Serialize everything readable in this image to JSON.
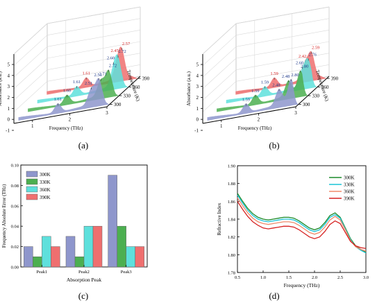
{
  "figure": {
    "panels": [
      {
        "id": "a",
        "label": "(a)"
      },
      {
        "id": "b",
        "label": "(b)"
      },
      {
        "id": "c",
        "label": "(c)"
      },
      {
        "id": "d",
        "label": "(d)"
      }
    ]
  },
  "colors": {
    "300K": "#8e96cc",
    "330K": "#4caf50",
    "360K": "#5ee0dc",
    "390K": "#ef6f6f",
    "300K_line": "#1a8a2a",
    "330K_line": "#19c3d6",
    "360K_line": "#f08a6a",
    "390K_line": "#d62020"
  },
  "chart_data": [
    {
      "type": "area",
      "panel": "(a)",
      "xlabel": "Frequency (THz)",
      "ylabel": "Absorbance (a.u.)",
      "zlabel": "Temperature (K)",
      "x_ticks": [
        "1",
        "2",
        "3"
      ],
      "y_ticks": [
        "-1",
        "0",
        "1",
        "2",
        "3",
        "4",
        "5"
      ],
      "z_ticks": [
        "300",
        "330",
        "360",
        "390"
      ],
      "series": [
        {
          "name": "300K",
          "peaks": [
            1.61,
            2.51,
            2.71
          ]
        },
        {
          "name": "330K",
          "peaks": [
            1.6,
            2.51,
            2.72
          ]
        },
        {
          "name": "360K",
          "peaks": [
            1.61,
            2.6,
            2.72
          ]
        },
        {
          "name": "390K",
          "peaks": [
            1.61,
            2.45,
            2.57
          ]
        }
      ],
      "peak_labels": [
        {
          "series": "300K",
          "labels": [
            "1.61",
            "2.51",
            "2.71"
          ]
        },
        {
          "series": "330K",
          "labels": [
            "1.60",
            "2.51",
            "2.72"
          ]
        },
        {
          "series": "360K",
          "labels": [
            "1.61",
            "2.60",
            "2.72"
          ]
        },
        {
          "series": "390K",
          "labels": [
            "1.61",
            "2.45",
            "2.57"
          ]
        }
      ]
    },
    {
      "type": "area",
      "panel": "(b)",
      "xlabel": "Frequency (THz)",
      "ylabel": "Absorbance (a.u.)",
      "zlabel": "Temperature (K)",
      "x_ticks": [
        "1",
        "2",
        "3"
      ],
      "y_ticks": [
        "-1",
        "0",
        "1",
        "2",
        "3",
        "4",
        "5"
      ],
      "z_ticks": [
        "300",
        "330",
        "360",
        "390"
      ],
      "series": [
        {
          "name": "300K",
          "peaks": [
            1.59,
            2.48,
            2.8
          ]
        },
        {
          "name": "330K",
          "peaks": [
            1.59,
            2.48,
            2.8
          ]
        },
        {
          "name": "360K",
          "peaks": [
            1.59,
            2.6,
            2.76
          ]
        },
        {
          "name": "390K",
          "peaks": [
            1.59,
            2.42,
            2.59
          ]
        }
      ],
      "peak_labels": [
        {
          "series": "300K",
          "labels": [
            "1.59",
            "2.48",
            "2.80"
          ]
        },
        {
          "series": "330K",
          "labels": [
            "1.59",
            "2.48",
            "2.80"
          ]
        },
        {
          "series": "360K",
          "labels": [
            "1.59",
            "2.60",
            "2.76"
          ]
        },
        {
          "series": "390K",
          "labels": [
            "1.59",
            "2.42",
            "2.59"
          ]
        }
      ]
    },
    {
      "type": "bar",
      "panel": "(c)",
      "categories": [
        "Peak1",
        "Peak2",
        "Peak3"
      ],
      "xlabel": "Absorption Peak",
      "ylabel": "Frequency Absolute Error (THz)",
      "ylim": [
        0.0,
        0.1
      ],
      "y_ticks": [
        "0.00",
        "0.02",
        "0.04",
        "0.06",
        "0.08",
        "0.10"
      ],
      "legend": "top-left",
      "series": [
        {
          "name": "300K",
          "values": [
            0.02,
            0.03,
            0.09
          ]
        },
        {
          "name": "330K",
          "values": [
            0.01,
            0.01,
            0.04
          ]
        },
        {
          "name": "360K",
          "values": [
            0.03,
            0.04,
            0.02
          ]
        },
        {
          "name": "390K",
          "values": [
            0.02,
            0.04,
            0.02
          ]
        }
      ]
    },
    {
      "type": "line",
      "panel": "(d)",
      "xlabel": "Frequency (THz)",
      "ylabel": "Refractive Index",
      "xlim": [
        0.5,
        3.0
      ],
      "ylim": [
        1.78,
        1.9
      ],
      "x_ticks": [
        "0.5",
        "1.0",
        "1.5",
        "2.0",
        "2.5",
        "3.0"
      ],
      "y_ticks": [
        "1.78",
        "1.80",
        "1.82",
        "1.84",
        "1.86",
        "1.88",
        "1.90"
      ],
      "legend": "top-right",
      "x": [
        0.5,
        0.6,
        0.7,
        0.8,
        0.9,
        1.0,
        1.1,
        1.2,
        1.3,
        1.4,
        1.5,
        1.6,
        1.7,
        1.8,
        1.9,
        2.0,
        2.1,
        2.2,
        2.3,
        2.4,
        2.5,
        2.6,
        2.7,
        2.8,
        2.9,
        3.0
      ],
      "series": [
        {
          "name": "300K",
          "values": [
            1.869,
            1.86,
            1.852,
            1.846,
            1.842,
            1.84,
            1.839,
            1.84,
            1.841,
            1.842,
            1.842,
            1.841,
            1.838,
            1.834,
            1.83,
            1.828,
            1.83,
            1.836,
            1.844,
            1.847,
            1.842,
            1.83,
            1.818,
            1.81,
            1.806,
            1.803
          ]
        },
        {
          "name": "330K",
          "values": [
            1.867,
            1.858,
            1.85,
            1.844,
            1.84,
            1.838,
            1.837,
            1.838,
            1.839,
            1.84,
            1.84,
            1.839,
            1.836,
            1.832,
            1.828,
            1.826,
            1.828,
            1.834,
            1.842,
            1.845,
            1.841,
            1.829,
            1.817,
            1.809,
            1.805,
            1.802
          ]
        },
        {
          "name": "360K",
          "values": [
            1.864,
            1.855,
            1.847,
            1.841,
            1.837,
            1.835,
            1.834,
            1.835,
            1.836,
            1.837,
            1.837,
            1.836,
            1.833,
            1.829,
            1.825,
            1.823,
            1.825,
            1.831,
            1.839,
            1.843,
            1.839,
            1.828,
            1.816,
            1.809,
            1.806,
            1.804
          ]
        },
        {
          "name": "390K",
          "values": [
            1.86,
            1.851,
            1.843,
            1.837,
            1.833,
            1.83,
            1.829,
            1.83,
            1.831,
            1.832,
            1.832,
            1.831,
            1.828,
            1.824,
            1.82,
            1.818,
            1.82,
            1.826,
            1.834,
            1.838,
            1.835,
            1.825,
            1.815,
            1.81,
            1.808,
            1.807
          ]
        }
      ]
    }
  ]
}
